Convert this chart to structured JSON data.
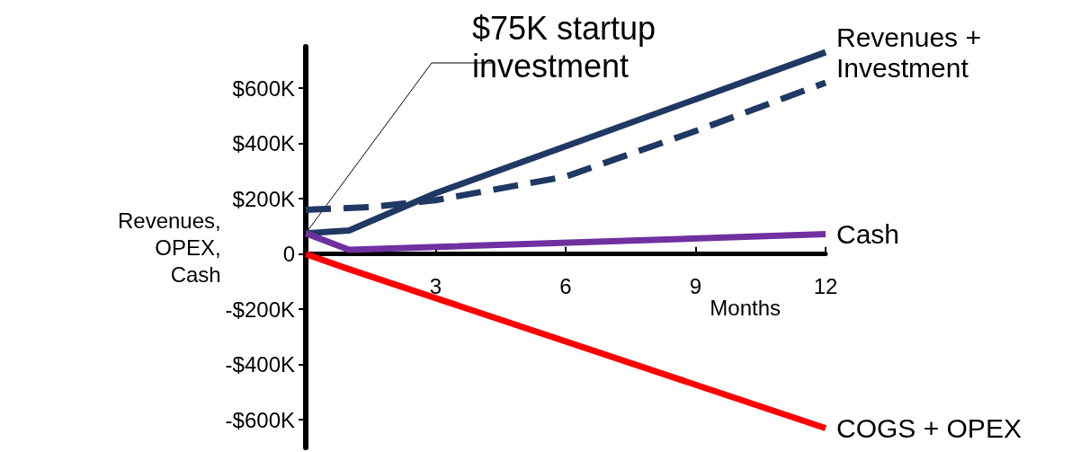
{
  "chart_data": {
    "type": "line",
    "ylabel": "Revenues,\nOPEX,\nCash",
    "xlabel": "Months",
    "annotations": [
      {
        "text": "$75K startup\ninvestment",
        "x": 0,
        "y": 75
      }
    ],
    "xlim": [
      0,
      12
    ],
    "xticks": [
      3,
      6,
      9,
      12
    ],
    "ylim": [
      -700,
      750
    ],
    "yticks": [
      {
        "value": -600,
        "label": "-$600K"
      },
      {
        "value": -400,
        "label": "-$400K"
      },
      {
        "value": -200,
        "label": "-$200K"
      },
      0,
      {
        "value": 200,
        "label": "$200K"
      },
      {
        "value": 400,
        "label": "$400K"
      },
      {
        "value": 600,
        "label": "$600K"
      }
    ],
    "grid": false,
    "legend": false,
    "marker": "none",
    "series": [
      {
        "name": "Revenues + Investment",
        "color": "#1f3864",
        "line_style": "solid",
        "x": [
          0,
          1,
          3,
          6,
          9,
          12
        ],
        "values": [
          75,
          85,
          220,
          390,
          560,
          730
        ]
      },
      {
        "color": "#1f3864",
        "line_style": "dashed",
        "x": [
          0,
          1.5,
          3,
          6,
          9,
          12
        ],
        "values": [
          160,
          170,
          195,
          280,
          445,
          620
        ]
      },
      {
        "name": "Cash",
        "color": "#7030a0",
        "line_style": "solid",
        "x": [
          0,
          1,
          12
        ],
        "values": [
          75,
          15,
          72
        ]
      },
      {
        "name": "COGS + OPEX",
        "color": "#ff0000",
        "line_style": "solid",
        "x": [
          0,
          1,
          12
        ],
        "values": [
          0,
          -55,
          -630
        ]
      }
    ]
  }
}
